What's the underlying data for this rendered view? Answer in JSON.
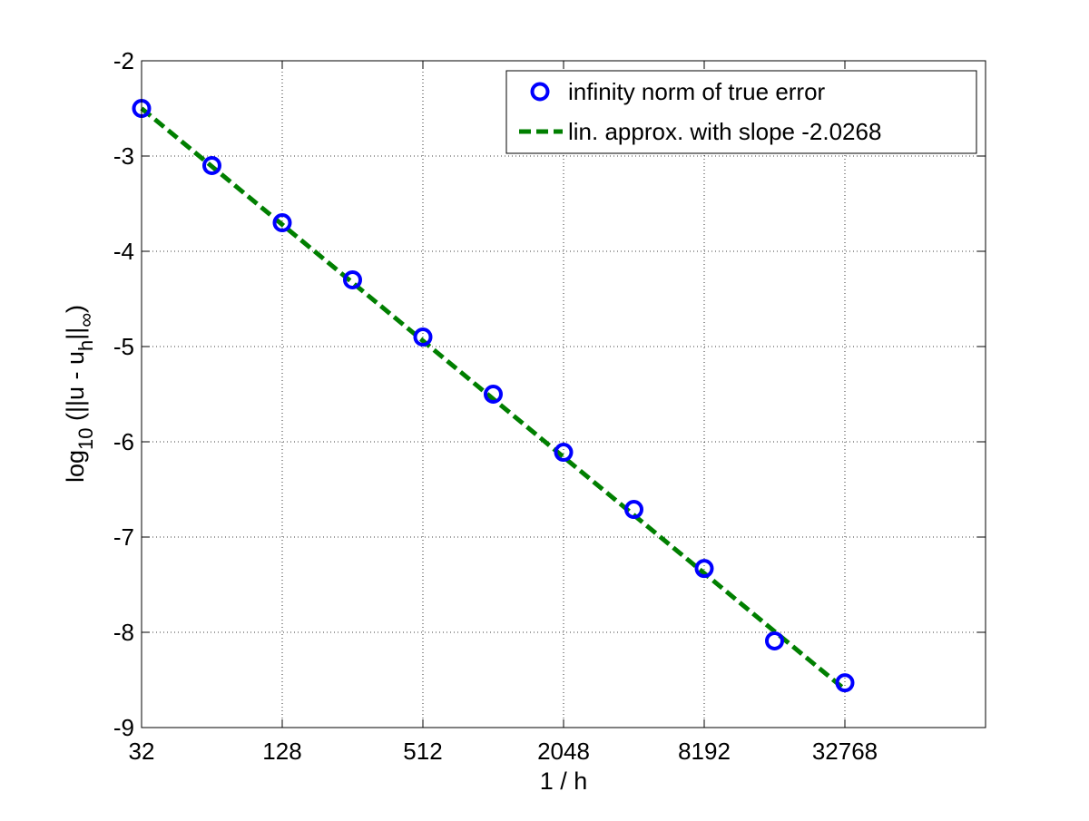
{
  "chart_data": {
    "type": "line",
    "title": "",
    "xlabel": "1 / h",
    "ylabel": {
      "prefix": "log",
      "prefix_sub": "10",
      "body": " (||u - u",
      "body_sub": "h",
      "body_end": "||",
      "end_sub": "∞",
      "suffix": ")"
    },
    "x_scale": "log2",
    "xlim": [
      32,
      131072
    ],
    "ylim": [
      -9,
      -2
    ],
    "xticks": [
      32,
      128,
      512,
      2048,
      8192,
      32768
    ],
    "xtick_labels": [
      "32",
      "128",
      "512",
      "2048",
      "8192",
      "32768"
    ],
    "yticks": [
      -9,
      -8,
      -7,
      -6,
      -5,
      -4,
      -3,
      -2
    ],
    "ytick_labels": [
      "-9",
      "-8",
      "-7",
      "-6",
      "-5",
      "-4",
      "-3",
      "-2"
    ],
    "grid": true,
    "legend_position": "top-right",
    "x": [
      32,
      64,
      128,
      256,
      512,
      1024,
      2048,
      4096,
      8192,
      16384,
      32768
    ],
    "series": [
      {
        "name": "infinity norm of true error",
        "style": "markers",
        "marker": "circle",
        "color": "#0000ff",
        "values": [
          -2.5,
          -3.1,
          -3.7,
          -4.3,
          -4.9,
          -5.5,
          -6.11,
          -6.71,
          -7.33,
          -8.09,
          -8.53
        ]
      },
      {
        "name": "lin. approx. with slope -2.0268",
        "style": "dashed-line",
        "color": "#007f00",
        "values": [
          -2.5,
          -3.11,
          -3.72,
          -4.33,
          -4.94,
          -5.55,
          -6.16,
          -6.77,
          -7.38,
          -7.99,
          -8.6
        ]
      }
    ]
  }
}
